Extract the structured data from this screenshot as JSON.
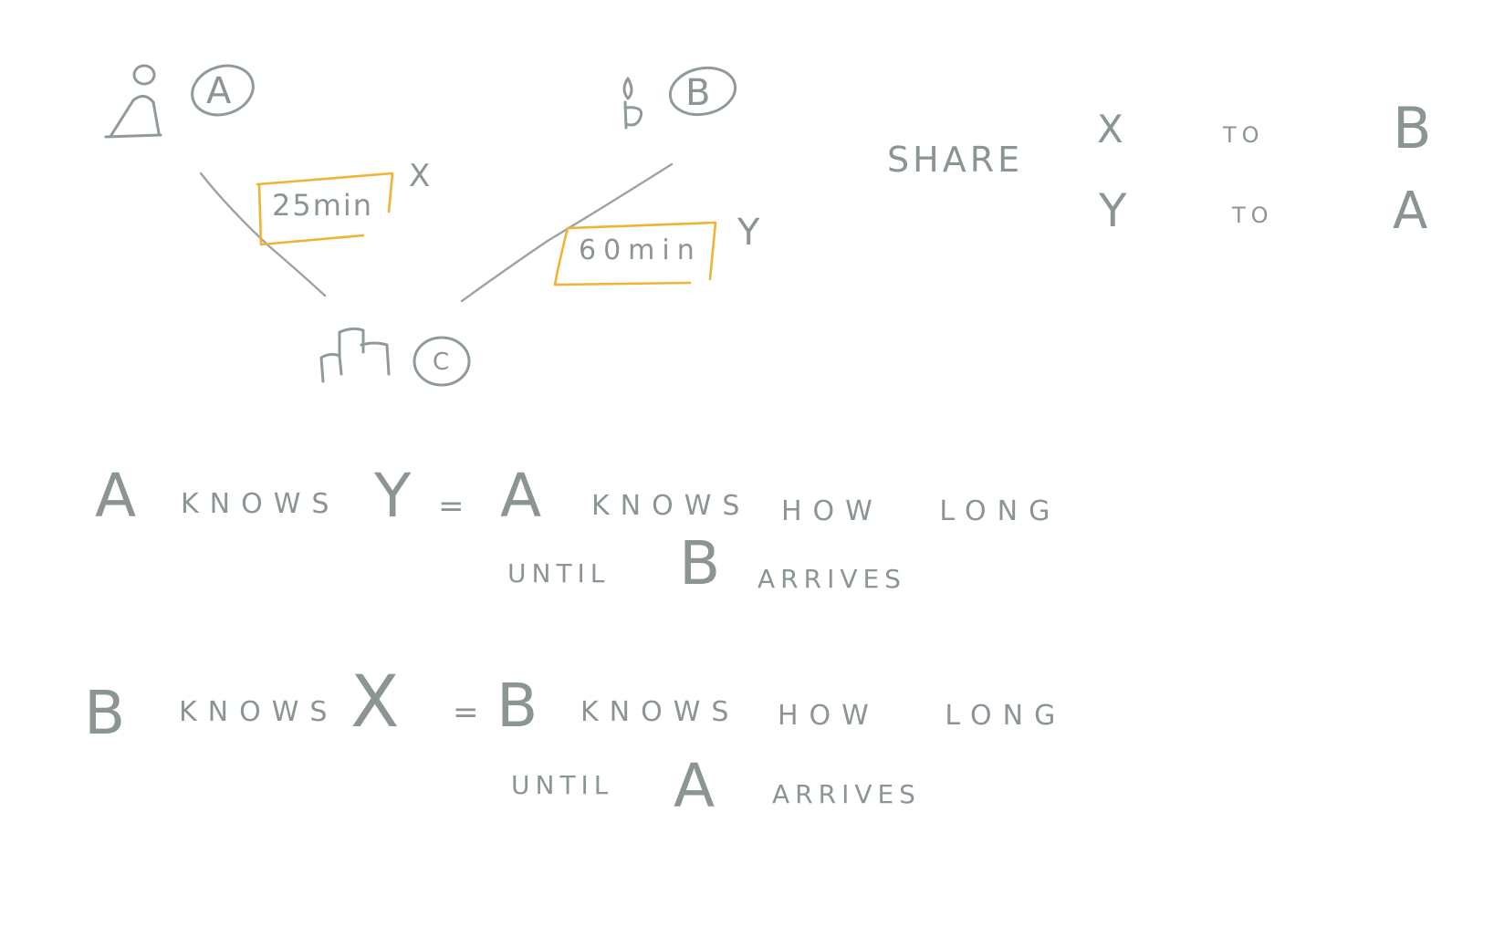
{
  "diagram": {
    "colors": {
      "ink": "#8f9a99",
      "highlight": "#f2b233",
      "background": "#ffffff"
    },
    "nodes": {
      "a": {
        "icon": "person-icon",
        "label": "A"
      },
      "b": {
        "icon": "person-icon",
        "label": "B"
      },
      "c": {
        "icon": "building-icon",
        "label": "C"
      }
    },
    "edges": {
      "a_to_c": {
        "duration": "25min",
        "variable": "X"
      },
      "b_to_c": {
        "duration": "60min",
        "variable": "Y"
      }
    },
    "share": {
      "heading": "SHARE",
      "rows": [
        {
          "what": "X",
          "connector": "TO",
          "who": "B"
        },
        {
          "what": "Y",
          "connector": "TO",
          "who": "A"
        }
      ]
    },
    "statements": [
      {
        "subject": "A",
        "verb": "KNOWS",
        "variable": "Y",
        "equals": "=",
        "subject2": "A",
        "verb2": "KNOWS",
        "phrase": "HOW LONG",
        "until": "UNTIL",
        "other": "B",
        "arrives": "ARRIVES"
      },
      {
        "subject": "B",
        "verb": "KNOWS",
        "variable": "X",
        "equals": "=",
        "subject2": "B",
        "verb2": "KNOWS",
        "phrase": "HOW LONG",
        "until": "UNTIL",
        "other": "A",
        "arrives": "ARRIVES"
      }
    ]
  }
}
